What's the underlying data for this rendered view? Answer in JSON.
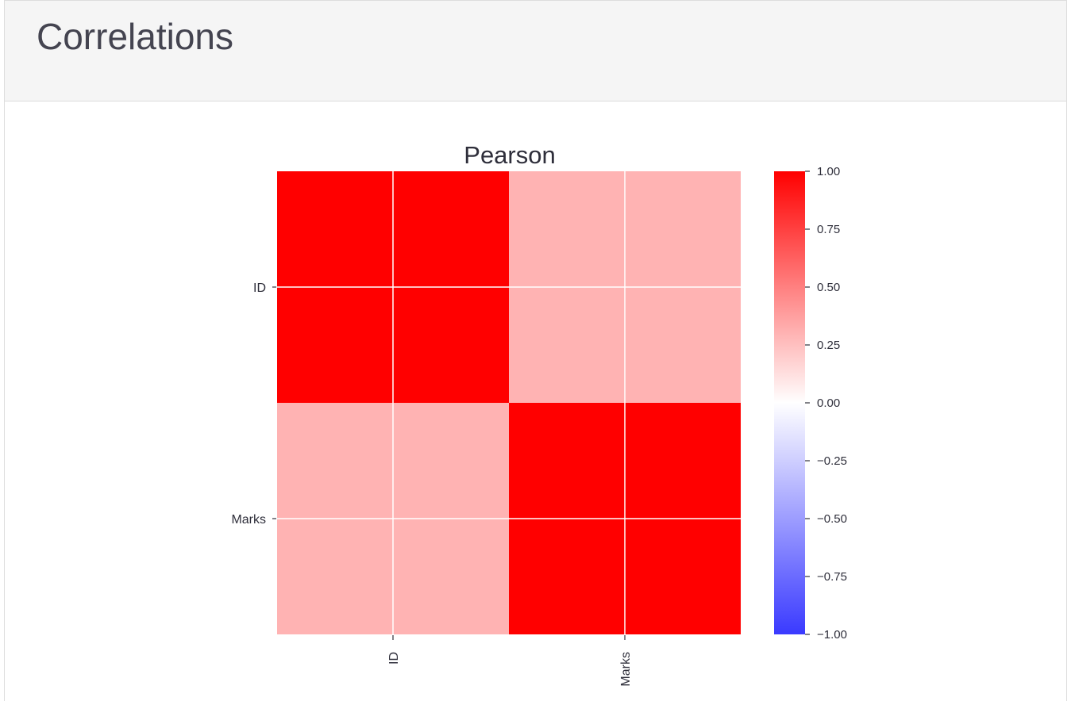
{
  "header": {
    "title": "Correlations"
  },
  "chart_data": {
    "type": "heatmap",
    "title": "Pearson",
    "rows": [
      "ID",
      "Marks"
    ],
    "columns": [
      "ID",
      "Marks"
    ],
    "values": [
      [
        1.0,
        0.3
      ],
      [
        0.3,
        1.0
      ]
    ],
    "vmin": -1,
    "vmax": 1,
    "colormap": {
      "low": "#3a3aff",
      "mid": "#ffffff",
      "high": "#ff0000"
    },
    "colorbar_ticks": [
      1.0,
      0.75,
      0.5,
      0.25,
      0.0,
      -0.25,
      -0.5,
      -0.75,
      -1.0
    ],
    "colorbar_tick_labels": [
      "1.00",
      "0.75",
      "0.50",
      "0.25",
      "0.00",
      "−0.25",
      "−0.50",
      "−0.75",
      "−1.00"
    ],
    "grid": true,
    "xlabel": "",
    "ylabel": ""
  }
}
